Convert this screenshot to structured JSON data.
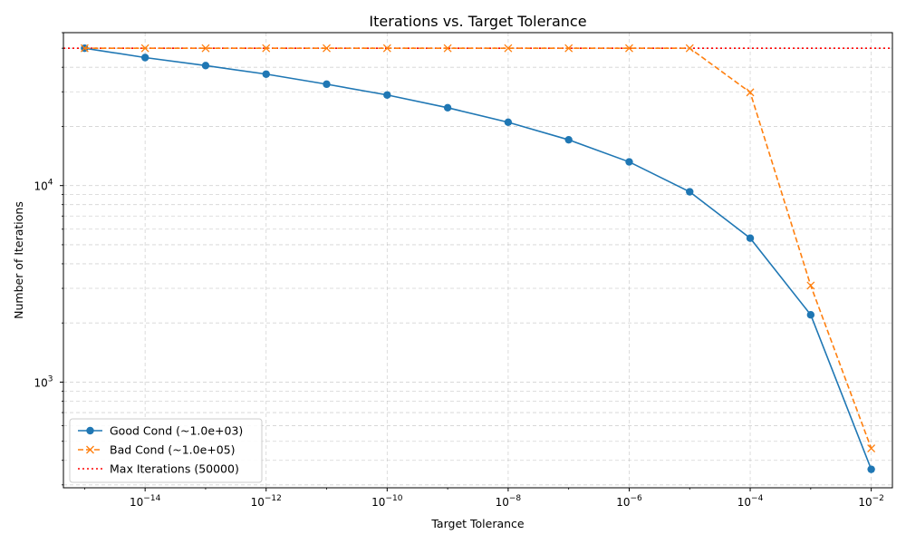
{
  "chart_data": {
    "type": "line",
    "title": "Iterations vs. Target Tolerance",
    "xlabel": "Target Tolerance",
    "ylabel": "Number of Iterations",
    "xscale": "log",
    "yscale": "log",
    "xlim": [
      1e-15,
      0.01
    ],
    "ylim": [
      290,
      60000
    ],
    "grid": true,
    "legend_position": "lower-left",
    "x_ticks": [
      {
        "base": "10",
        "exp": "−14",
        "value": 1e-14
      },
      {
        "base": "10",
        "exp": "−12",
        "value": 1e-12
      },
      {
        "base": "10",
        "exp": "−10",
        "value": 1e-10
      },
      {
        "base": "10",
        "exp": "−8",
        "value": 1e-08
      },
      {
        "base": "10",
        "exp": "−6",
        "value": 1e-06
      },
      {
        "base": "10",
        "exp": "−4",
        "value": 0.0001
      },
      {
        "base": "10",
        "exp": "−2",
        "value": 0.01
      }
    ],
    "y_ticks": [
      {
        "base": "10",
        "exp": "3",
        "value": 1000
      },
      {
        "base": "10",
        "exp": "4",
        "value": 10000
      }
    ],
    "x": [
      1e-15,
      1e-14,
      1e-13,
      1e-12,
      1e-11,
      1e-10,
      1e-09,
      1e-08,
      1e-07,
      1e-06,
      1e-05,
      0.0001,
      0.001,
      0.01
    ],
    "series": [
      {
        "name": "Good Cond (~1.0e+03)",
        "color": "#1f77b4",
        "linestyle": "solid",
        "marker": "circle",
        "values": [
          50000,
          44800,
          40800,
          36900,
          32800,
          28900,
          24900,
          21000,
          17100,
          13200,
          9300,
          5400,
          2200,
          360
        ]
      },
      {
        "name": "Bad Cond (~1.0e+05)",
        "color": "#ff7f0e",
        "linestyle": "dashed",
        "marker": "x",
        "values": [
          50000,
          50000,
          50000,
          50000,
          50000,
          50000,
          50000,
          50000,
          50000,
          50000,
          50000,
          29800,
          3100,
          460
        ]
      }
    ],
    "reference_lines": [
      {
        "name": "Max Iterations (50000)",
        "value": 50000,
        "color": "#ff0000",
        "linestyle": "dotted"
      }
    ]
  }
}
